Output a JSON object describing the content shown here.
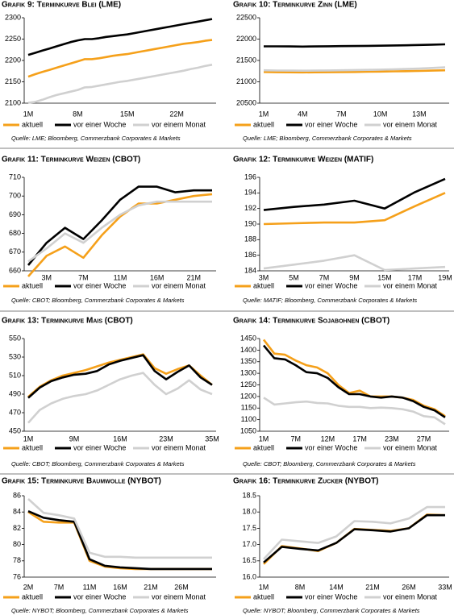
{
  "chart_data": [
    {
      "type": "line",
      "title": "Grafik 9: Terminkurve Blei (LME)",
      "source": "Quelle: LME; Bloomberg, Commerzbank Corporates & Markets",
      "categories": [
        "1M",
        null,
        null,
        null,
        null,
        null,
        null,
        "8M",
        null,
        null,
        null,
        null,
        null,
        null,
        "15M",
        null,
        null,
        null,
        null,
        null,
        null,
        "22M",
        null,
        null,
        null,
        null,
        null
      ],
      "ylim": [
        2100,
        2300
      ],
      "yticks": [
        2100,
        2150,
        2200,
        2250,
        2300
      ],
      "series": [
        {
          "name": "aktuell",
          "color": "#f5a01a",
          "values": [
            2162,
            2168,
            2173,
            2178,
            2183,
            2188,
            2193,
            2198,
            2203,
            2203,
            2205,
            2208,
            2211,
            2213,
            2215,
            2218,
            2221,
            2224,
            2227,
            2230,
            2233,
            2236,
            2239,
            2241,
            2243,
            2246,
            2248
          ]
        },
        {
          "name": "vor einer Woche",
          "color": "#000000",
          "values": [
            2213,
            2218,
            2223,
            2228,
            2233,
            2238,
            2243,
            2247,
            2250,
            2250,
            2252,
            2255,
            2257,
            2259,
            2261,
            2264,
            2267,
            2270,
            2273,
            2276,
            2279,
            2282,
            2285,
            2288,
            2291,
            2294,
            2297
          ]
        },
        {
          "name": "vor einem Monat",
          "color": "#d0d0d0",
          "values": [
            2101,
            2103,
            2108,
            2114,
            2119,
            2123,
            2127,
            2131,
            2137,
            2138,
            2141,
            2144,
            2147,
            2150,
            2152,
            2155,
            2158,
            2161,
            2164,
            2167,
            2170,
            2173,
            2176,
            2180,
            2183,
            2187,
            2190
          ]
        }
      ]
    },
    {
      "type": "line",
      "title": "Grafik 10: Terminkurve Zinn (LME)",
      "source": "Quelle: LME; Bloomberg, Commerzbank Corporates & Markets",
      "categories": [
        "1M",
        null,
        null,
        "4M",
        null,
        null,
        "7M",
        null,
        null,
        "10M",
        null,
        null,
        "13M",
        null,
        null
      ],
      "ylim": [
        20500,
        22500
      ],
      "yticks": [
        20500,
        21000,
        21500,
        22000,
        22500
      ],
      "series": [
        {
          "name": "aktuell",
          "color": "#f5a01a",
          "values": [
            21230,
            21225,
            21222,
            21220,
            21222,
            21225,
            21228,
            21230,
            21235,
            21240,
            21245,
            21250,
            21255,
            21262,
            21270
          ]
        },
        {
          "name": "vor einer Woche",
          "color": "#000000",
          "values": [
            21830,
            21830,
            21828,
            21825,
            21828,
            21832,
            21835,
            21838,
            21842,
            21846,
            21850,
            21855,
            21862,
            21870,
            21878
          ]
        },
        {
          "name": "vor einem Monat",
          "color": "#d0d0d0",
          "values": [
            21270,
            21265,
            21262,
            21260,
            21262,
            21266,
            21270,
            21275,
            21280,
            21285,
            21292,
            21300,
            21310,
            21325,
            21340
          ]
        }
      ]
    },
    {
      "type": "line",
      "title": "Grafik 11: Terminkurve Weizen (CBOT)",
      "source": "Quelle: CBOT; Bloomberg, Commerzbank Corporates & Markets",
      "categories": [
        null,
        "3M",
        null,
        "7M",
        null,
        "11M",
        null,
        "16M",
        null,
        "21M",
        null
      ],
      "ylim": [
        660,
        710
      ],
      "yticks": [
        660,
        670,
        680,
        690,
        700,
        710
      ],
      "series": [
        {
          "name": "aktuell",
          "color": "#f5a01a",
          "values": [
            657,
            668,
            673,
            667,
            679,
            689,
            696,
            696,
            698,
            700,
            701
          ]
        },
        {
          "name": "vor einer Woche",
          "color": "#000000",
          "values": [
            663,
            675,
            683,
            677,
            687,
            698,
            705,
            705,
            702,
            703,
            703
          ]
        },
        {
          "name": "vor einem Monat",
          "color": "#d0d0d0",
          "values": [
            665,
            672,
            680,
            675,
            683,
            690,
            695,
            697,
            697,
            697,
            697
          ]
        }
      ]
    },
    {
      "type": "line",
      "title": "Grafik 12: Terminkurve Weizen (MATIF)",
      "source": "Quelle: MATIF; Bloomberg, Commerzbank Corporates & Markets",
      "categories": [
        "3M",
        "5M",
        "7M",
        "9M",
        "15M",
        "17M",
        "19M"
      ],
      "ylim": [
        184,
        196
      ],
      "yticks": [
        184,
        186,
        188,
        190,
        192,
        194,
        196
      ],
      "series": [
        {
          "name": "aktuell",
          "color": "#f5a01a",
          "values": [
            190,
            190.1,
            190.2,
            190.2,
            190.5,
            192.3,
            194
          ]
        },
        {
          "name": "vor einer Woche",
          "color": "#000000",
          "values": [
            191.8,
            192.2,
            192.5,
            193,
            192,
            194.1,
            195.8
          ]
        },
        {
          "name": "vor einem Monat",
          "color": "#d0d0d0",
          "values": [
            184.3,
            184.8,
            185.3,
            186,
            184.1,
            184.3,
            184.5
          ]
        }
      ]
    },
    {
      "type": "line",
      "title": "Grafik 13: Terminkurve Mais (CBOT)",
      "source": "Quelle: CBOT; Bloomberg, Commerzbank Corporates & Markets",
      "categories": [
        "1M",
        null,
        null,
        null,
        "9M",
        null,
        null,
        null,
        "16M",
        null,
        null,
        null,
        "23M",
        null,
        null,
        null,
        "35M"
      ],
      "ylim": [
        450,
        550
      ],
      "yticks": [
        450,
        470,
        490,
        510,
        530,
        550
      ],
      "series": [
        {
          "name": "aktuell",
          "color": "#f5a01a",
          "values": [
            487,
            498,
            505,
            510,
            513,
            516,
            520,
            524,
            527,
            530,
            533,
            518,
            512,
            517,
            521,
            510,
            500
          ]
        },
        {
          "name": "vor einer Woche",
          "color": "#000000",
          "values": [
            486,
            497,
            504,
            508,
            511,
            512,
            515,
            522,
            526,
            529,
            532,
            515,
            506,
            514,
            521,
            508,
            500
          ]
        },
        {
          "name": "vor einem Monat",
          "color": "#d0d0d0",
          "values": [
            459,
            473,
            480,
            485,
            488,
            490,
            494,
            500,
            506,
            510,
            513,
            500,
            490,
            496,
            505,
            495,
            490
          ]
        }
      ]
    },
    {
      "type": "line",
      "title": "Grafik 14: Terminkurve Sojabohnen (CBOT)",
      "source": "Quelle: CBOT; Bloomberg, Commerzbank Corporates & Markets",
      "categories": [
        "1M",
        null,
        null,
        "7M",
        null,
        null,
        "12M",
        null,
        null,
        "17M",
        null,
        null,
        "23M",
        null,
        null,
        "27M",
        null,
        null
      ],
      "ylim": [
        1050,
        1450
      ],
      "yticks": [
        1050,
        1100,
        1150,
        1200,
        1250,
        1300,
        1350,
        1400,
        1450
      ],
      "series": [
        {
          "name": "aktuell",
          "color": "#f5a01a",
          "values": [
            1445,
            1385,
            1380,
            1355,
            1335,
            1325,
            1300,
            1250,
            1215,
            1225,
            1200,
            1200,
            1200,
            1195,
            1185,
            1160,
            1145,
            1115
          ]
        },
        {
          "name": "vor einer Woche",
          "color": "#000000",
          "values": [
            1420,
            1365,
            1360,
            1335,
            1305,
            1300,
            1280,
            1240,
            1210,
            1210,
            1200,
            1195,
            1200,
            1195,
            1180,
            1155,
            1140,
            1110
          ]
        },
        {
          "name": "vor einem Monat",
          "color": "#d0d0d0",
          "values": [
            1195,
            1165,
            1170,
            1175,
            1178,
            1172,
            1170,
            1160,
            1155,
            1155,
            1150,
            1152,
            1150,
            1145,
            1135,
            1115,
            1110,
            1080
          ]
        }
      ]
    },
    {
      "type": "line",
      "title": "Grafik 15: Terminkurve Baumwolle (NYBOT)",
      "source": "Quelle: NYBOT; Bloomberg, Commerzbank Corporates & Markets",
      "categories": [
        "2M",
        null,
        "7M",
        null,
        "11M",
        null,
        "16M",
        null,
        "21M",
        null,
        "26M",
        null,
        null
      ],
      "ylim": [
        76,
        86
      ],
      "yticks": [
        76,
        78,
        80,
        82,
        84,
        86
      ],
      "series": [
        {
          "name": "aktuell",
          "color": "#f5a01a",
          "values": [
            84,
            82.8,
            82.7,
            82.7,
            78,
            77.3,
            77.1,
            77,
            77,
            77,
            77,
            77,
            77
          ]
        },
        {
          "name": "vor einer Woche",
          "color": "#000000",
          "values": [
            84.1,
            83.3,
            83,
            82.8,
            78.2,
            77.4,
            77.2,
            77.1,
            77,
            77,
            77,
            77,
            77
          ]
        },
        {
          "name": "vor einem Monat",
          "color": "#d0d0d0",
          "values": [
            85.6,
            83.9,
            83.6,
            83.2,
            79,
            78.5,
            78.5,
            78.4,
            78.4,
            78.4,
            78.4,
            78.4,
            78.4
          ]
        }
      ]
    },
    {
      "type": "line",
      "title": "Grafik 16: Terminkurve Zucker (NYBOT)",
      "source": "Quelle: NYBOT; Bloomberg, Commerzbank Corporates & Markets",
      "categories": [
        "1M",
        null,
        "8M",
        null,
        "14M",
        null,
        "21M",
        null,
        "26M",
        null,
        "33M"
      ],
      "ylim": [
        16,
        18.5
      ],
      "yticks": [
        {
          "value": 16,
          "label": "16.0"
        },
        16.5,
        {
          "value": 17,
          "label": "17.0"
        },
        17.5,
        {
          "value": 18,
          "label": "18.0"
        },
        18.5
      ],
      "series": [
        {
          "name": "aktuell",
          "color": "#f5a01a",
          "values": [
            16.4,
            16.95,
            16.88,
            16.8,
            17.05,
            17.48,
            17.45,
            17.42,
            17.5,
            17.92,
            17.9
          ]
        },
        {
          "name": "vor einer Woche",
          "color": "#000000",
          "values": [
            16.45,
            16.93,
            16.87,
            16.82,
            17.05,
            17.47,
            17.44,
            17.4,
            17.5,
            17.9,
            17.9
          ]
        },
        {
          "name": "vor einem Monat",
          "color": "#d0d0d0",
          "values": [
            16.55,
            17.15,
            17.1,
            17.05,
            17.25,
            17.72,
            17.7,
            17.65,
            17.8,
            18.15,
            18.15
          ]
        }
      ]
    }
  ]
}
